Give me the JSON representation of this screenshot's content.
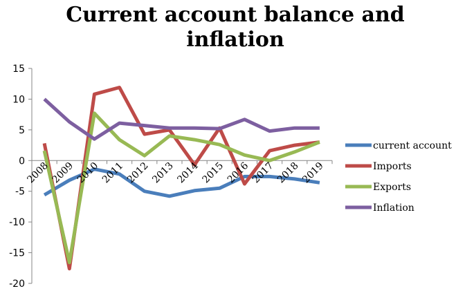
{
  "chart_data": {
    "type": "line",
    "title": "Current account balance and inflation",
    "categories": [
      "2008",
      "2009",
      "2010",
      "2011",
      "2012",
      "2013",
      "2014",
      "2015",
      "2016",
      "2017",
      "2018",
      "2019"
    ],
    "ylim": [
      -20,
      15
    ],
    "yticks": [
      "15",
      "10",
      "5",
      "0",
      "-5",
      "-10",
      "-15",
      "-20"
    ],
    "grid": false,
    "legend_position": "right",
    "series": [
      {
        "name": "current account",
        "color": "#4a7ebb",
        "values": [
          -5.6,
          -3.2,
          -1.4,
          -2.2,
          -5.0,
          -5.8,
          -4.9,
          -4.5,
          -2.6,
          -2.6,
          -3.0,
          -3.6
        ]
      },
      {
        "name": "Imports",
        "color": "#be4b48",
        "values": [
          2.8,
          -17.6,
          10.8,
          11.9,
          4.3,
          5.0,
          -0.7,
          5.3,
          -3.8,
          1.6,
          2.5,
          3.0
        ]
      },
      {
        "name": "Exports",
        "color": "#98b954",
        "values": [
          1.6,
          -16.6,
          7.7,
          3.4,
          0.8,
          4.0,
          3.4,
          2.6,
          0.9,
          0.0,
          1.4,
          3.0
        ]
      },
      {
        "name": "Inflation",
        "color": "#7d5fa0",
        "values": [
          10.0,
          6.3,
          3.5,
          6.1,
          5.7,
          5.3,
          5.3,
          5.2,
          6.7,
          4.8,
          5.3,
          5.3
        ]
      }
    ]
  }
}
